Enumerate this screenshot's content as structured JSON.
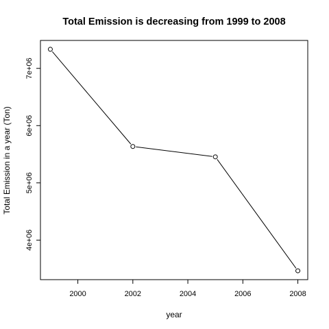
{
  "chart_data": {
    "type": "line",
    "title": "Total Emission is decreasing from 1999 to 2008",
    "xlabel": "year",
    "ylabel": "Total Emission in a year (Ton)",
    "x": [
      1999,
      2002,
      2005,
      2008
    ],
    "series": [
      {
        "values": [
          7332967,
          5635780,
          5454703,
          3464206
        ]
      }
    ],
    "xticks": [
      2000,
      2002,
      2004,
      2006,
      2008
    ],
    "xtick_labels": [
      "2000",
      "2002",
      "2004",
      "2006",
      "2008"
    ],
    "yticks": [
      4000000,
      5000000,
      6000000,
      7000000
    ],
    "ytick_labels": [
      "4e+06",
      "5e+06",
      "6e+06",
      "7e+06"
    ],
    "xlim": [
      1998.64,
      2008.36
    ],
    "ylim": [
      3309476,
      7487697
    ],
    "grid": false,
    "marker": "open-circle",
    "line_color": "#000000"
  }
}
